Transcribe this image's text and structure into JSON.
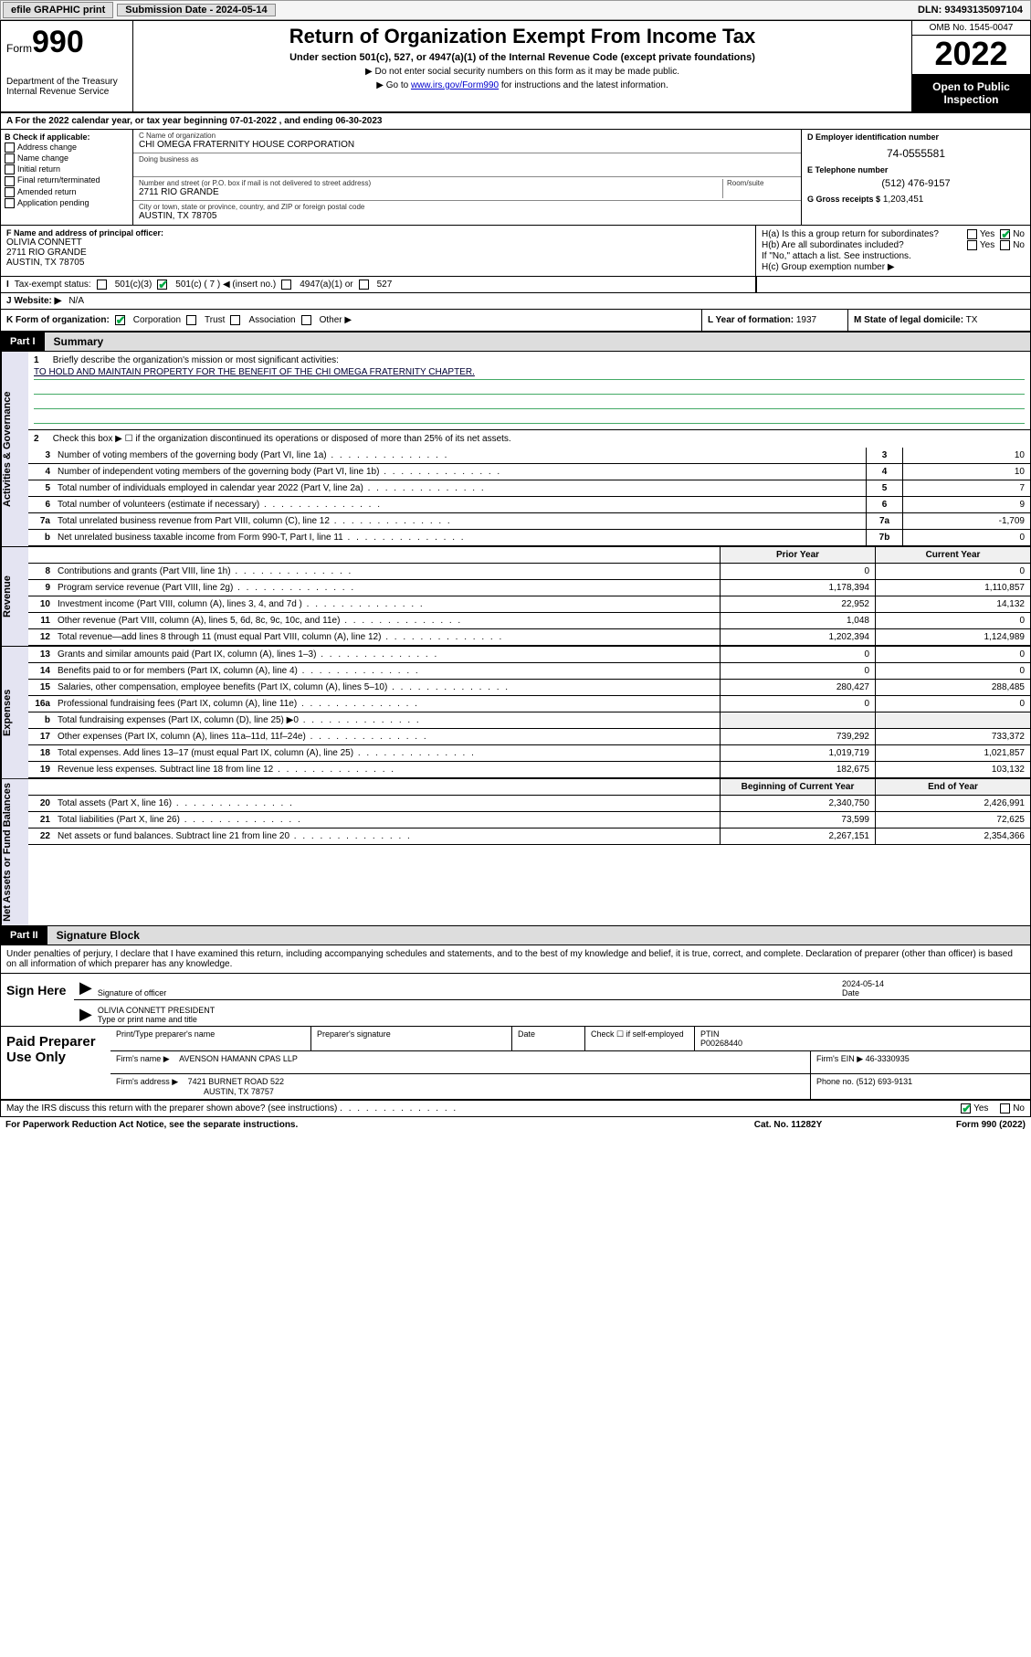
{
  "topbar": {
    "efile": "efile GRAPHIC print",
    "sub_label": "Submission Date - 2024-05-14",
    "dln": "DLN: 93493135097104"
  },
  "header": {
    "form_word": "Form",
    "form_num": "990",
    "dept": "Department of the Treasury",
    "irs": "Internal Revenue Service",
    "title": "Return of Organization Exempt From Income Tax",
    "subtitle": "Under section 501(c), 527, or 4947(a)(1) of the Internal Revenue Code (except private foundations)",
    "note1": "▶ Do not enter social security numbers on this form as it may be made public.",
    "note2_pre": "▶ Go to ",
    "note2_link": "www.irs.gov/Form990",
    "note2_post": " for instructions and the latest information.",
    "omb": "OMB No. 1545-0047",
    "year": "2022",
    "open": "Open to Public Inspection"
  },
  "rowA": {
    "text": "A For the 2022 calendar year, or tax year beginning 07-01-2022    , and ending 06-30-2023"
  },
  "boxB": {
    "title": "B Check if applicable:",
    "o1": "Address change",
    "o2": "Name change",
    "o3": "Initial return",
    "o4": "Final return/terminated",
    "o5": "Amended return",
    "o6": "Application pending"
  },
  "boxC": {
    "name_lbl": "C Name of organization",
    "name": "CHI OMEGA FRATERNITY HOUSE CORPORATION",
    "dba_lbl": "Doing business as",
    "dba": "",
    "addr_lbl": "Number and street (or P.O. box if mail is not delivered to street address)",
    "room_lbl": "Room/suite",
    "addr": "2711 RIO GRANDE",
    "city_lbl": "City or town, state or province, country, and ZIP or foreign postal code",
    "city": "AUSTIN, TX  78705"
  },
  "boxD": {
    "lbl": "D Employer identification number",
    "val": "74-0555581",
    "e_lbl": "E Telephone number",
    "e_val": "(512) 476-9157",
    "g_lbl": "G Gross receipts $",
    "g_val": "1,203,451"
  },
  "boxF": {
    "lbl": "F Name and address of principal officer:",
    "l1": "OLIVIA CONNETT",
    "l2": "2711 RIO GRANDE",
    "l3": "AUSTIN, TX  78705"
  },
  "boxH": {
    "ha": "H(a)  Is this a group return for subordinates?",
    "hb": "H(b)  Are all subordinates included?",
    "hb_note": "If \"No,\" attach a list. See instructions.",
    "hc": "H(c)  Group exemption number ▶",
    "yes": "Yes",
    "no": "No"
  },
  "rowI": {
    "lbl": "Tax-exempt status:",
    "o1": "501(c)(3)",
    "o2a": "501(c) ( 7 ) ◀ (insert no.)",
    "o3": "4947(a)(1) or",
    "o4": "527"
  },
  "rowJ": {
    "lbl": "J   Website: ▶",
    "val": "N/A"
  },
  "rowK": {
    "lbl": "K Form of organization:",
    "o1": "Corporation",
    "o2": "Trust",
    "o3": "Association",
    "o4": "Other ▶"
  },
  "rowL": {
    "lbl": "L Year of formation:",
    "val": "1937"
  },
  "rowM": {
    "lbl": "M State of legal domicile:",
    "val": "TX"
  },
  "part1": {
    "num": "Part I",
    "title": "Summary"
  },
  "q1": {
    "num": "1",
    "txt": "Briefly describe the organization's mission or most significant activities:",
    "mission": "TO HOLD AND MAINTAIN PROPERTY FOR THE BENEFIT OF THE CHI OMEGA FRATERNITY CHAPTER."
  },
  "q2": {
    "num": "2",
    "txt": "Check this box ▶ ☐  if the organization discontinued its operations or disposed of more than 25% of its net assets."
  },
  "gov_rows": [
    {
      "n": "3",
      "t": "Number of voting members of the governing body (Part VI, line 1a)",
      "k": "3",
      "v": "10"
    },
    {
      "n": "4",
      "t": "Number of independent voting members of the governing body (Part VI, line 1b)",
      "k": "4",
      "v": "10"
    },
    {
      "n": "5",
      "t": "Total number of individuals employed in calendar year 2022 (Part V, line 2a)",
      "k": "5",
      "v": "7"
    },
    {
      "n": "6",
      "t": "Total number of volunteers (estimate if necessary)",
      "k": "6",
      "v": "9"
    },
    {
      "n": "7a",
      "t": "Total unrelated business revenue from Part VIII, column (C), line 12",
      "k": "7a",
      "v": "-1,709"
    },
    {
      "n": "b",
      "t": "Net unrelated business taxable income from Form 990-T, Part I, line 11",
      "k": "7b",
      "v": "0"
    }
  ],
  "dual_hdr": {
    "c1": "Prior Year",
    "c2": "Current Year"
  },
  "rev_rows": [
    {
      "n": "8",
      "t": "Contributions and grants (Part VIII, line 1h)",
      "v1": "0",
      "v2": "0"
    },
    {
      "n": "9",
      "t": "Program service revenue (Part VIII, line 2g)",
      "v1": "1,178,394",
      "v2": "1,110,857"
    },
    {
      "n": "10",
      "t": "Investment income (Part VIII, column (A), lines 3, 4, and 7d )",
      "v1": "22,952",
      "v2": "14,132"
    },
    {
      "n": "11",
      "t": "Other revenue (Part VIII, column (A), lines 5, 6d, 8c, 9c, 10c, and 11e)",
      "v1": "1,048",
      "v2": "0"
    },
    {
      "n": "12",
      "t": "Total revenue—add lines 8 through 11 (must equal Part VIII, column (A), line 12)",
      "v1": "1,202,394",
      "v2": "1,124,989"
    }
  ],
  "exp_rows": [
    {
      "n": "13",
      "t": "Grants and similar amounts paid (Part IX, column (A), lines 1–3)",
      "v1": "0",
      "v2": "0"
    },
    {
      "n": "14",
      "t": "Benefits paid to or for members (Part IX, column (A), line 4)",
      "v1": "0",
      "v2": "0"
    },
    {
      "n": "15",
      "t": "Salaries, other compensation, employee benefits (Part IX, column (A), lines 5–10)",
      "v1": "280,427",
      "v2": "288,485"
    },
    {
      "n": "16a",
      "t": "Professional fundraising fees (Part IX, column (A), line 11e)",
      "v1": "0",
      "v2": "0"
    },
    {
      "n": "b",
      "t": "Total fundraising expenses (Part IX, column (D), line 25) ▶0",
      "v1": "",
      "v2": "",
      "shade": true
    },
    {
      "n": "17",
      "t": "Other expenses (Part IX, column (A), lines 11a–11d, 11f–24e)",
      "v1": "739,292",
      "v2": "733,372"
    },
    {
      "n": "18",
      "t": "Total expenses. Add lines 13–17 (must equal Part IX, column (A), line 25)",
      "v1": "1,019,719",
      "v2": "1,021,857"
    },
    {
      "n": "19",
      "t": "Revenue less expenses. Subtract line 18 from line 12",
      "v1": "182,675",
      "v2": "103,132"
    }
  ],
  "na_hdr": {
    "c1": "Beginning of Current Year",
    "c2": "End of Year"
  },
  "na_rows": [
    {
      "n": "20",
      "t": "Total assets (Part X, line 16)",
      "v1": "2,340,750",
      "v2": "2,426,991"
    },
    {
      "n": "21",
      "t": "Total liabilities (Part X, line 26)",
      "v1": "73,599",
      "v2": "72,625"
    },
    {
      "n": "22",
      "t": "Net assets or fund balances. Subtract line 21 from line 20",
      "v1": "2,267,151",
      "v2": "2,354,366"
    }
  ],
  "vtabs": {
    "gov": "Activities & Governance",
    "rev": "Revenue",
    "exp": "Expenses",
    "na": "Net Assets or Fund Balances"
  },
  "part2": {
    "num": "Part II",
    "title": "Signature Block"
  },
  "sig": {
    "intro": "Under penalties of perjury, I declare that I have examined this return, including accompanying schedules and statements, and to the best of my knowledge and belief, it is true, correct, and complete. Declaration of preparer (other than officer) is based on all information of which preparer has any knowledge.",
    "sign_here": "Sign Here",
    "sig_lbl": "Signature of officer",
    "date_lbl": "Date",
    "date_val": "2024-05-14",
    "name": "OLIVIA CONNETT PRESIDENT",
    "name_lbl": "Type or print name and title"
  },
  "prep": {
    "title": "Paid Preparer Use Only",
    "h1": "Print/Type preparer's name",
    "h2": "Preparer's signature",
    "h3": "Date",
    "h4": "Check ☐ if self-employed",
    "h5_lbl": "PTIN",
    "h5": "P00268440",
    "firm_lbl": "Firm's name    ▶",
    "firm": "AVENSON HAMANN CPAS LLP",
    "ein_lbl": "Firm's EIN ▶",
    "ein": "46-3330935",
    "addr_lbl": "Firm's address ▶",
    "addr1": "7421 BURNET ROAD 522",
    "addr2": "AUSTIN, TX  78757",
    "phone_lbl": "Phone no.",
    "phone": "(512) 693-9131"
  },
  "footer": {
    "discuss": "May the IRS discuss this return with the preparer shown above? (see instructions)",
    "yes": "Yes",
    "no": "No",
    "pra": "For Paperwork Reduction Act Notice, see the separate instructions.",
    "cat": "Cat. No. 11282Y",
    "form": "Form 990 (2022)"
  }
}
